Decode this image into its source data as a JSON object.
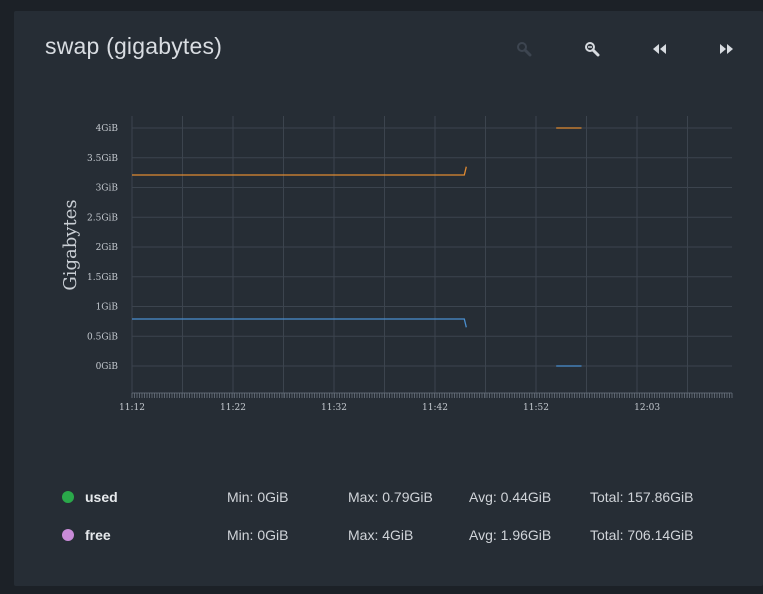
{
  "title": "swap (gigabytes)",
  "toolbar": [
    {
      "name": "zoom-in-icon"
    },
    {
      "name": "zoom-out-icon"
    },
    {
      "name": "rewind-icon"
    },
    {
      "name": "fast-forward-icon"
    }
  ],
  "colors": {
    "background": "#1c2127",
    "panel": "#262d35",
    "grid": "#3c444e",
    "used_line": "#4a8fd0",
    "free_line": "#e08a32",
    "used_dot": "#2aa84a",
    "free_dot": "#c98bd8"
  },
  "chart_data": {
    "type": "line",
    "title": "",
    "ylabel": "Gigabytes",
    "xlabel": "",
    "ylim": [
      0,
      4
    ],
    "yticks": [
      {
        "value": 4,
        "label": "4GiB"
      },
      {
        "value": 3.5,
        "label": "3.5GiB"
      },
      {
        "value": 3,
        "label": "3GiB"
      },
      {
        "value": 2.5,
        "label": "2.5GiB"
      },
      {
        "value": 2,
        "label": "2GiB"
      },
      {
        "value": 1.5,
        "label": "1.5GiB"
      },
      {
        "value": 1,
        "label": "1GiB"
      },
      {
        "value": 0.5,
        "label": "0.5GiB"
      },
      {
        "value": 0,
        "label": "0GiB"
      }
    ],
    "xticks": [
      "11:12",
      "11:22",
      "11:32",
      "11:42",
      "11:52",
      "12:03"
    ],
    "grid": true,
    "series": [
      {
        "name": "free",
        "segments": [
          [
            {
              "x": "11:12",
              "y": 3.21
            },
            {
              "x": "11:44.9",
              "y": 3.21
            },
            {
              "x": "11:45.1",
              "y": 3.35
            }
          ],
          [
            {
              "x": "11:54",
              "y": 4.0
            },
            {
              "x": "11:56.5",
              "y": 4.0
            }
          ]
        ]
      },
      {
        "name": "used",
        "segments": [
          [
            {
              "x": "11:12",
              "y": 0.79
            },
            {
              "x": "11:44.9",
              "y": 0.79
            },
            {
              "x": "11:45.1",
              "y": 0.65
            }
          ],
          [
            {
              "x": "11:54",
              "y": 0.0
            },
            {
              "x": "11:56.5",
              "y": 0.0
            }
          ]
        ]
      }
    ]
  },
  "legend": [
    {
      "name": "used",
      "min": "Min: 0GiB",
      "max": "Max: 0.79GiB",
      "avg": "Avg: 0.44GiB",
      "total": "Total: 157.86GiB"
    },
    {
      "name": "free",
      "min": "Min: 0GiB",
      "max": "Max: 4GiB",
      "avg": "Avg: 1.96GiB",
      "total": "Total: 706.14GiB"
    }
  ]
}
